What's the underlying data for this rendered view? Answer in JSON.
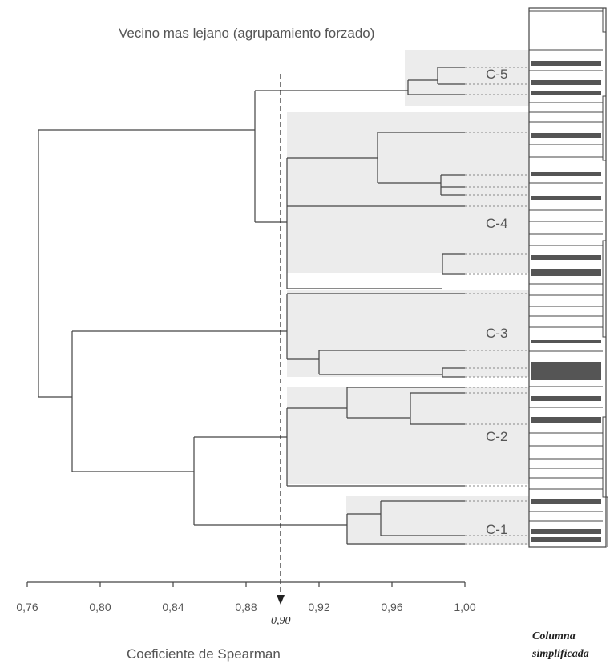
{
  "title": "Vecino mas lejano (agrupamiento forzado)",
  "x_axis": {
    "label": "Coeficiente de Spearman",
    "ticks": [
      "0,76",
      "0,80",
      "0,84",
      "0,88",
      "0,92",
      "0,96",
      "1,00"
    ],
    "tick_values": [
      0.76,
      0.8,
      0.84,
      0.88,
      0.92,
      0.96,
      1.0
    ],
    "range": [
      0.76,
      1.0
    ]
  },
  "threshold": {
    "value": 0.9,
    "label": "0,90"
  },
  "clusters": [
    {
      "label": "C-5"
    },
    {
      "label": "C-4"
    },
    {
      "label": "C-3"
    },
    {
      "label": "C-2"
    },
    {
      "label": "C-1"
    }
  ],
  "column_label": {
    "line1": "Columna",
    "line2": "simplificada"
  },
  "colors": {
    "line": "#444444",
    "shade": "#ececec",
    "column_fill": "#555555"
  }
}
